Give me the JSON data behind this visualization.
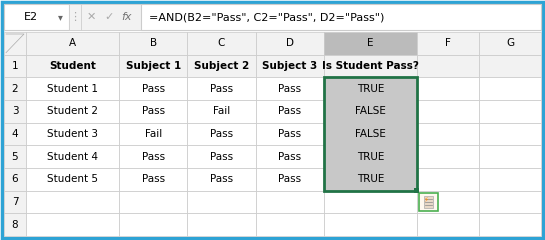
{
  "formula_bar_cell": "E2",
  "formula_bar_text": "=AND(B2=\"Pass\", C2=\"Pass\", D2=\"Pass\")",
  "col_headers": [
    "A",
    "B",
    "C",
    "D",
    "E",
    "F",
    "G"
  ],
  "table_headers": [
    "Student",
    "Subject 1",
    "Subject 2",
    "Subject 3",
    "Is Student Pass?"
  ],
  "table_data": [
    [
      "Student 1",
      "Pass",
      "Pass",
      "Pass",
      "TRUE"
    ],
    [
      "Student 2",
      "Pass",
      "Fail",
      "Pass",
      "FALSE"
    ],
    [
      "Student 3",
      "Fail",
      "Pass",
      "Pass",
      "FALSE"
    ],
    [
      "Student 4",
      "Pass",
      "Pass",
      "Pass",
      "TRUE"
    ],
    [
      "Student 5",
      "Pass",
      "Pass",
      "Pass",
      "TRUE"
    ]
  ],
  "bg_color": "#FFFFFF",
  "outer_border_color": "#2EA3D5",
  "grid_color": "#C8C8C8",
  "col_header_bg": "#F2F2F2",
  "selected_col_bg": "#C8C8C8",
  "selected_col_header_bg": "#BBBBBB",
  "e_col_highlight_border": "#217346",
  "formula_bar_bg": "#F2F2F2",
  "formula_bar_border": "#CCCCCC",
  "normal_text_color": "#000000",
  "icon_color": "#999999",
  "col_widths_rel": [
    1.5,
    1.1,
    1.1,
    1.1,
    1.5,
    1.0,
    1.0
  ],
  "n_data_rows": 5,
  "n_empty_rows": 2
}
